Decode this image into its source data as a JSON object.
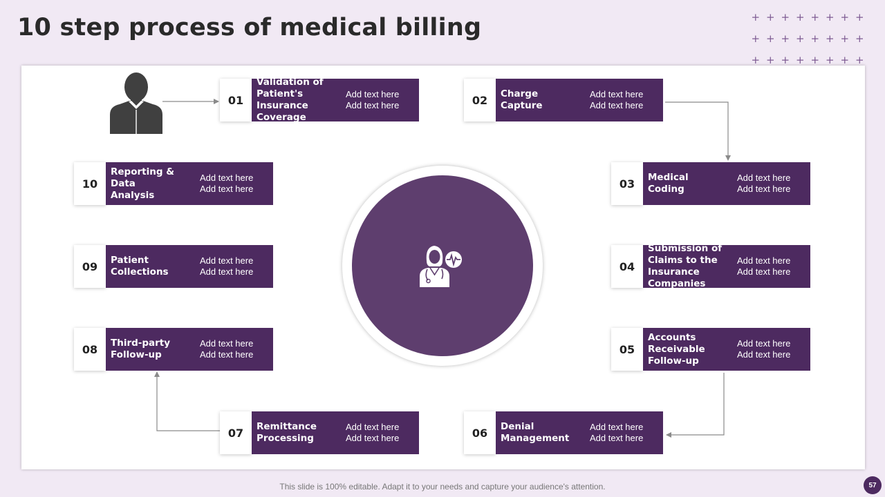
{
  "slide": {
    "title": "10 step process of medical billing",
    "footer": "This slide is 100% editable. Adapt it to your needs and capture your audience's attention.",
    "page_number": "57"
  },
  "colors": {
    "background": "#f1e9f4",
    "accent": "#4d2a60",
    "circle": "#5e3e6e",
    "connector": "#8a8a8a"
  },
  "icons": {
    "person": "person-silhouette-icon",
    "doctor": "doctor-with-heartbeat-icon"
  },
  "steps": [
    {
      "num": "01",
      "title": "Validation of Patient's Insurance Coverage",
      "desc1": "Add text here",
      "desc2": "Add text here"
    },
    {
      "num": "02",
      "title": "Charge Capture",
      "desc1": "Add text here",
      "desc2": "Add text here"
    },
    {
      "num": "03",
      "title": "Medical Coding",
      "desc1": "Add text here",
      "desc2": "Add text here"
    },
    {
      "num": "04",
      "title": "Submission of Claims to the Insurance Companies",
      "desc1": "Add text here",
      "desc2": "Add text here"
    },
    {
      "num": "05",
      "title": "Accounts Receivable Follow-up",
      "desc1": "Add text here",
      "desc2": "Add text here"
    },
    {
      "num": "06",
      "title": "Denial Management",
      "desc1": "Add text here",
      "desc2": "Add text here"
    },
    {
      "num": "07",
      "title": "Remittance Processing",
      "desc1": "Add text here",
      "desc2": "Add text here"
    },
    {
      "num": "08",
      "title": "Third-party Follow-up",
      "desc1": "Add text here",
      "desc2": "Add text here"
    },
    {
      "num": "09",
      "title": "Patient Collections",
      "desc1": "Add text here",
      "desc2": "Add text here"
    },
    {
      "num": "10",
      "title": "Reporting & Data Analysis",
      "desc1": "Add text here",
      "desc2": "Add text here"
    }
  ]
}
